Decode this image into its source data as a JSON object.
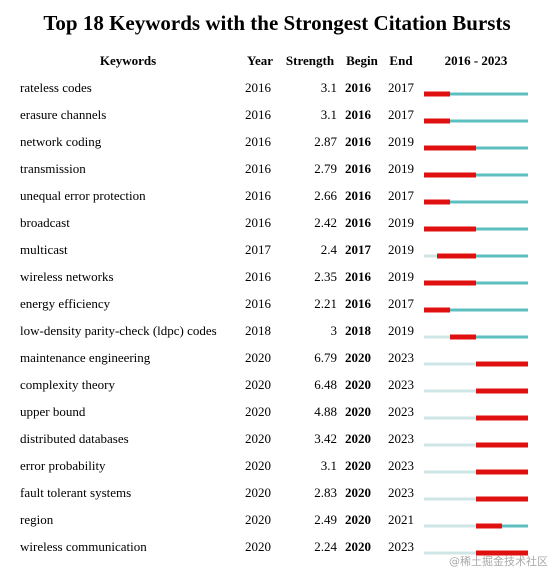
{
  "title": "Top 18 Keywords with the Strongest Citation Bursts",
  "columns": {
    "keyword": "Keywords",
    "year": "Year",
    "strength": "Strength",
    "begin": "Begin",
    "end": "End"
  },
  "timeline": {
    "from": 2016,
    "joiner": "-",
    "to": 2023,
    "colors": {
      "before": "#cfe6e6",
      "active": "#5cbfc0",
      "burst": "#e01010"
    }
  },
  "rows": [
    {
      "keyword": "rateless codes",
      "year": 2016,
      "strength": 3.1,
      "begin": 2016,
      "end": 2017
    },
    {
      "keyword": "erasure channels",
      "year": 2016,
      "strength": 3.1,
      "begin": 2016,
      "end": 2017
    },
    {
      "keyword": "network coding",
      "year": 2016,
      "strength": 2.87,
      "begin": 2016,
      "end": 2019
    },
    {
      "keyword": "transmission",
      "year": 2016,
      "strength": 2.79,
      "begin": 2016,
      "end": 2019
    },
    {
      "keyword": "unequal error protection",
      "year": 2016,
      "strength": 2.66,
      "begin": 2016,
      "end": 2017
    },
    {
      "keyword": "broadcast",
      "year": 2016,
      "strength": 2.42,
      "begin": 2016,
      "end": 2019
    },
    {
      "keyword": "multicast",
      "year": 2017,
      "strength": 2.4,
      "begin": 2017,
      "end": 2019
    },
    {
      "keyword": "wireless networks",
      "year": 2016,
      "strength": 2.35,
      "begin": 2016,
      "end": 2019
    },
    {
      "keyword": "energy efficiency",
      "year": 2016,
      "strength": 2.21,
      "begin": 2016,
      "end": 2017
    },
    {
      "keyword": "low-density parity-check (ldpc) codes",
      "year": 2018,
      "strength": 3,
      "begin": 2018,
      "end": 2019
    },
    {
      "keyword": "maintenance engineering",
      "year": 2020,
      "strength": 6.79,
      "begin": 2020,
      "end": 2023
    },
    {
      "keyword": "complexity theory",
      "year": 2020,
      "strength": 6.48,
      "begin": 2020,
      "end": 2023
    },
    {
      "keyword": "upper bound",
      "year": 2020,
      "strength": 4.88,
      "begin": 2020,
      "end": 2023
    },
    {
      "keyword": "distributed databases",
      "year": 2020,
      "strength": 3.42,
      "begin": 2020,
      "end": 2023
    },
    {
      "keyword": "error probability",
      "year": 2020,
      "strength": 3.1,
      "begin": 2020,
      "end": 2023
    },
    {
      "keyword": "fault tolerant systems",
      "year": 2020,
      "strength": 2.83,
      "begin": 2020,
      "end": 2023
    },
    {
      "keyword": "region",
      "year": 2020,
      "strength": 2.49,
      "begin": 2020,
      "end": 2021
    },
    {
      "keyword": "wireless communication",
      "year": 2020,
      "strength": 2.24,
      "begin": 2020,
      "end": 2023
    }
  ],
  "watermark": "@稀土掘金技术社区"
}
